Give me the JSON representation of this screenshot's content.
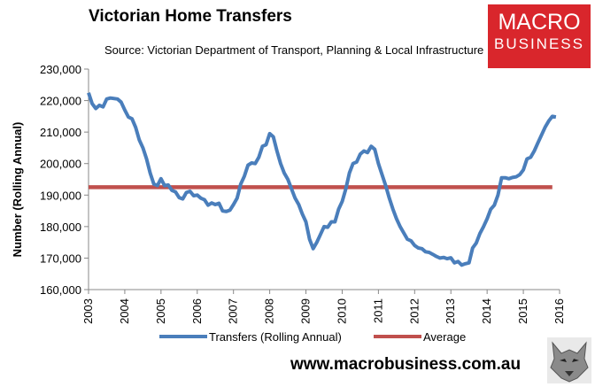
{
  "header": {
    "title": "Victorian Home Transfers",
    "source": "Source: Victorian Department of Transport, Planning & Local Infrastructure"
  },
  "logo": {
    "line1": "MACRO",
    "line2": "BUSINESS",
    "bg_color": "#d9262c"
  },
  "footer": {
    "url": "www.macrobusiness.com.au",
    "wolf_icon": "wolf-logo-icon"
  },
  "chart_data": {
    "type": "line",
    "title": "Victorian Home Transfers",
    "ylabel": "Number (Rolling Annual)",
    "xlabel": "",
    "ylim": [
      160000,
      230000
    ],
    "xlim": [
      2003,
      2016
    ],
    "y_ticks": [
      "160,000",
      "170,000",
      "180,000",
      "190,000",
      "200,000",
      "210,000",
      "220,000",
      "230,000"
    ],
    "y_tick_values": [
      160000,
      170000,
      180000,
      190000,
      200000,
      210000,
      220000,
      230000
    ],
    "x_ticks": [
      "2003",
      "2004",
      "2005",
      "2006",
      "2007",
      "2008",
      "2009",
      "2010",
      "2011",
      "2012",
      "2013",
      "2014",
      "2015",
      "2016"
    ],
    "x_tick_values": [
      2003,
      2004,
      2005,
      2006,
      2007,
      2008,
      2009,
      2010,
      2011,
      2012,
      2013,
      2014,
      2015,
      2016
    ],
    "grid": false,
    "legend_position": "bottom",
    "series": [
      {
        "name": "Transfers (Rolling Annual)",
        "color": "#4a7ebb",
        "x": [
          2003.0,
          2003.1,
          2003.2,
          2003.3,
          2003.4,
          2003.5,
          2003.6,
          2003.8,
          2003.9,
          2004.0,
          2004.1,
          2004.2,
          2004.3,
          2004.4,
          2004.5,
          2004.6,
          2004.7,
          2004.8,
          2004.9,
          2005.0,
          2005.1,
          2005.2,
          2005.3,
          2005.4,
          2005.5,
          2005.6,
          2005.7,
          2005.8,
          2005.9,
          2006.0,
          2006.1,
          2006.2,
          2006.3,
          2006.4,
          2006.5,
          2006.6,
          2006.7,
          2006.8,
          2006.9,
          2007.0,
          2007.1,
          2007.2,
          2007.3,
          2007.4,
          2007.5,
          2007.6,
          2007.7,
          2007.8,
          2007.9,
          2008.0,
          2008.1,
          2008.2,
          2008.3,
          2008.4,
          2008.5,
          2008.6,
          2008.7,
          2008.8,
          2008.9,
          2009.0,
          2009.1,
          2009.2,
          2009.3,
          2009.4,
          2009.5,
          2009.6,
          2009.7,
          2009.8,
          2009.9,
          2010.0,
          2010.1,
          2010.2,
          2010.3,
          2010.4,
          2010.5,
          2010.6,
          2010.7,
          2010.8,
          2010.9,
          2011.0,
          2011.1,
          2011.2,
          2011.3,
          2011.4,
          2011.5,
          2011.6,
          2011.7,
          2011.8,
          2011.9,
          2012.0,
          2012.1,
          2012.2,
          2012.3,
          2012.4,
          2012.5,
          2012.6,
          2012.7,
          2012.8,
          2012.9,
          2013.0,
          2013.1,
          2013.2,
          2013.3,
          2013.4,
          2013.5,
          2013.6,
          2013.7,
          2013.8,
          2013.9,
          2014.0,
          2014.1,
          2014.2,
          2014.3,
          2014.4,
          2014.5,
          2014.6,
          2014.7,
          2014.8,
          2014.9,
          2015.0,
          2015.1,
          2015.2,
          2015.3,
          2015.4,
          2015.5,
          2015.6,
          2015.7,
          2015.8,
          2015.9
        ],
        "values": [
          222500,
          219000,
          217500,
          218500,
          218000,
          220500,
          220800,
          220500,
          219500,
          217000,
          214800,
          214200,
          211500,
          207500,
          205000,
          201500,
          197000,
          193500,
          193000,
          195200,
          193000,
          193200,
          191500,
          191000,
          189200,
          188800,
          190800,
          191200,
          189800,
          190000,
          189000,
          188500,
          186800,
          187500,
          187000,
          187400,
          185000,
          184800,
          185200,
          187000,
          189000,
          193500,
          196000,
          199500,
          200200,
          200000,
          202000,
          205500,
          206000,
          209500,
          208500,
          204000,
          200000,
          197000,
          195000,
          192000,
          189000,
          187000,
          184000,
          181500,
          176000,
          173000,
          175000,
          177500,
          180000,
          179800,
          181500,
          181500,
          185500,
          188000,
          192000,
          197000,
          200000,
          200500,
          203000,
          204000,
          203500,
          205500,
          204500,
          200000,
          196500,
          193000,
          189000,
          185500,
          182500,
          180000,
          178000,
          176000,
          175500,
          174000,
          173200,
          173000,
          172000,
          171800,
          171200,
          170500,
          170000,
          170200,
          169800,
          170100,
          168500,
          168900,
          167800,
          168200,
          168500,
          173200,
          174800,
          177800,
          180000,
          182500,
          185500,
          186800,
          190000,
          195500,
          195500,
          195200,
          195600,
          195800,
          196500,
          198000,
          201500,
          202000,
          204000,
          206500,
          209000,
          211500,
          213500,
          215000,
          214800
        ]
      },
      {
        "name": "Average",
        "color": "#c0504d",
        "x": [
          2003.0,
          2015.8
        ],
        "values": [
          192500,
          192500
        ]
      }
    ]
  }
}
